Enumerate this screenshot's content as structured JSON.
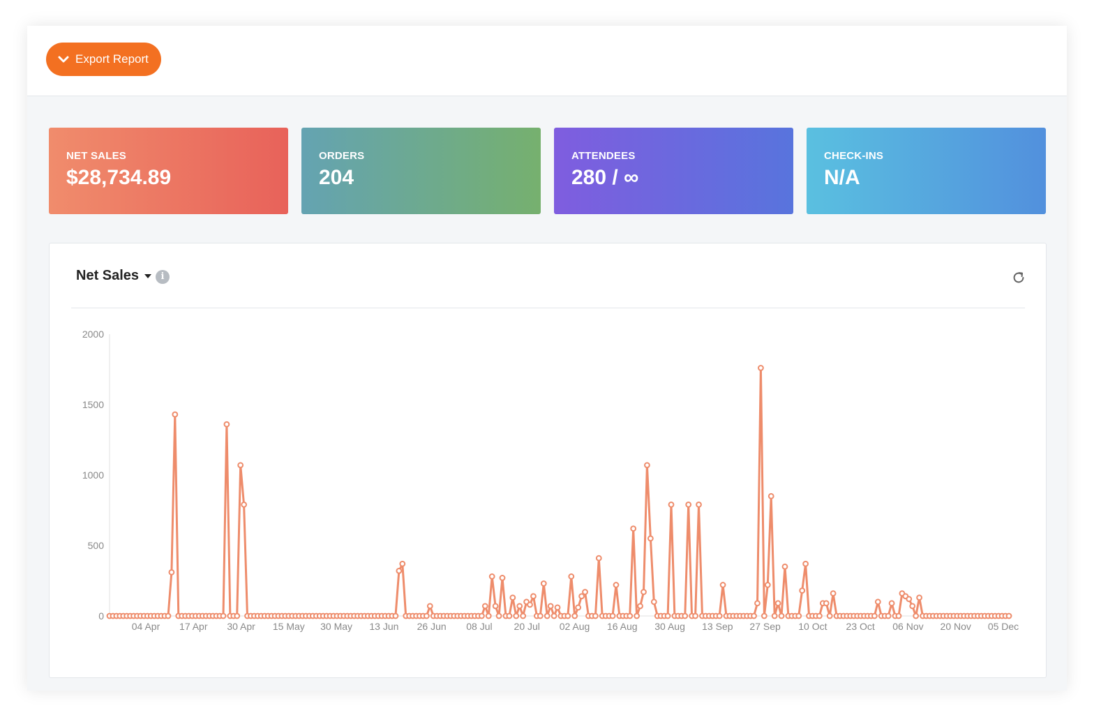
{
  "toolbar": {
    "export_label": "Export Report"
  },
  "stats": [
    {
      "label": "NET SALES",
      "value": "$28,734.89",
      "gradient": [
        "#f08c6c",
        "#e8625a"
      ]
    },
    {
      "label": "ORDERS",
      "value": "204",
      "gradient": [
        "#64a3b2",
        "#76b06e"
      ]
    },
    {
      "label": "ATTENDEES",
      "value": "280 / ∞",
      "gradient": [
        "#7f5ddf",
        "#5874dd"
      ]
    },
    {
      "label": "CHECK-INS",
      "value": "N/A",
      "gradient": [
        "#5ac0e0",
        "#5290dd"
      ]
    }
  ],
  "panel": {
    "title": "Net Sales",
    "info_icon": "info-icon",
    "refresh_icon": "refresh-icon"
  },
  "chart_data": {
    "type": "line",
    "title": "Net Sales",
    "xlabel": "",
    "ylabel": "",
    "ylim": [
      0,
      2000
    ],
    "yticks": [
      0,
      500,
      1000,
      1500,
      2000
    ],
    "xticks": [
      "04 Apr",
      "17 Apr",
      "30 Apr",
      "15 May",
      "30 May",
      "13 Jun",
      "26 Jun",
      "08 Jul",
      "20 Jul",
      "02 Aug",
      "16 Aug",
      "30 Aug",
      "13 Sep",
      "27 Sep",
      "10 Oct",
      "23 Oct",
      "06 Nov",
      "20 Nov",
      "05 Dec"
    ],
    "line_color": "#ee8c6b",
    "grid": false,
    "series": [
      {
        "values": [
          0,
          0,
          0,
          0,
          0,
          0,
          0,
          0,
          0,
          0,
          0,
          0,
          0,
          0,
          0,
          0,
          0,
          0,
          310,
          1430,
          0,
          0,
          0,
          0,
          0,
          0,
          0,
          0,
          0,
          0,
          0,
          0,
          0,
          0,
          1360,
          0,
          0,
          0,
          1070,
          790,
          0,
          0,
          0,
          0,
          0,
          0,
          0,
          0,
          0,
          0,
          0,
          0,
          0,
          0,
          0,
          0,
          0,
          0,
          0,
          0,
          0,
          0,
          0,
          0,
          0,
          0,
          0,
          0,
          0,
          0,
          0,
          0,
          0,
          0,
          0,
          0,
          0,
          0,
          0,
          0,
          0,
          0,
          0,
          0,
          320,
          370,
          0,
          0,
          0,
          0,
          0,
          0,
          0,
          70,
          0,
          0,
          0,
          0,
          0,
          0,
          0,
          0,
          0,
          0,
          0,
          0,
          0,
          0,
          0,
          70,
          0,
          280,
          70,
          0,
          270,
          0,
          0,
          130,
          0,
          70,
          0,
          100,
          80,
          140,
          0,
          0,
          230,
          0,
          70,
          0,
          60,
          0,
          0,
          0,
          280,
          0,
          60,
          140,
          170,
          0,
          0,
          0,
          410,
          0,
          0,
          0,
          0,
          220,
          0,
          0,
          0,
          0,
          620,
          0,
          70,
          170,
          1070,
          550,
          100,
          0,
          0,
          0,
          0,
          790,
          0,
          0,
          0,
          0,
          790,
          0,
          0,
          790,
          0,
          0,
          0,
          0,
          0,
          0,
          220,
          0,
          0,
          0,
          0,
          0,
          0,
          0,
          0,
          0,
          90,
          1760,
          0,
          220,
          850,
          0,
          90,
          0,
          350,
          0,
          0,
          0,
          0,
          180,
          370,
          0,
          0,
          0,
          0,
          90,
          90,
          0,
          160,
          0,
          0,
          0,
          0,
          0,
          0,
          0,
          0,
          0,
          0,
          0,
          0,
          100,
          0,
          0,
          0,
          90,
          0,
          0,
          160,
          140,
          120,
          70,
          0,
          130,
          0,
          0,
          0,
          0,
          0,
          0,
          0,
          0,
          0,
          0,
          0,
          0,
          0,
          0,
          0,
          0,
          0,
          0,
          0,
          0,
          0,
          0,
          0,
          0,
          0,
          0
        ]
      }
    ]
  }
}
